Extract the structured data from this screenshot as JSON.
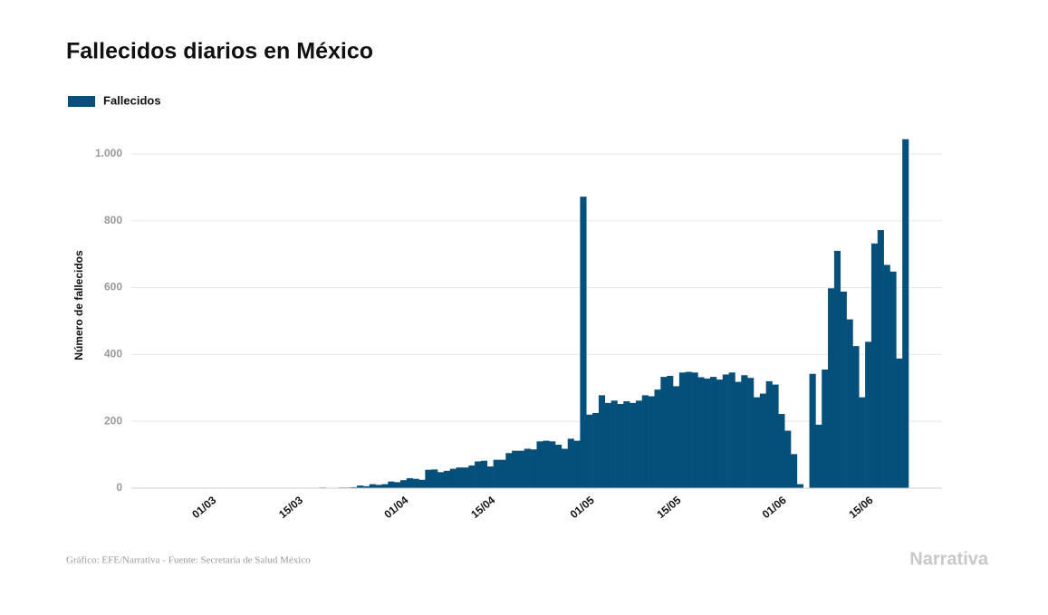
{
  "chart_data": {
    "type": "bar",
    "title": "Fallecidos diarios en México",
    "y_label": "Número de fallecidos",
    "source": "Gráfico: EFE/Narrativa - Fuente: Secretaría de Salud México",
    "brand": "Narrativa",
    "grid": true,
    "legend": "top-left",
    "ylim": [
      0,
      1100
    ],
    "yticks": [
      0,
      200,
      400,
      600,
      800,
      {
        "value": 1000,
        "label": "1.000"
      }
    ],
    "categories": [
      null,
      null,
      null,
      null,
      null,
      null,
      null,
      "01/03",
      null,
      null,
      null,
      null,
      null,
      null,
      null,
      null,
      null,
      null,
      null,
      null,
      null,
      "15/03",
      null,
      null,
      null,
      null,
      null,
      null,
      null,
      null,
      null,
      null,
      null,
      null,
      null,
      null,
      null,
      null,
      "01/04",
      null,
      null,
      null,
      null,
      null,
      null,
      null,
      null,
      null,
      null,
      null,
      null,
      null,
      "15/04",
      null,
      null,
      null,
      null,
      null,
      null,
      null,
      null,
      null,
      null,
      null,
      null,
      null,
      null,
      null,
      "01/05",
      null,
      null,
      null,
      null,
      null,
      null,
      null,
      null,
      null,
      null,
      null,
      null,
      null,
      "15/05",
      null,
      null,
      null,
      null,
      null,
      null,
      null,
      null,
      null,
      null,
      null,
      null,
      null,
      null,
      null,
      null,
      "01/06",
      null,
      null,
      null,
      null,
      null,
      null,
      null,
      null,
      null,
      null,
      null,
      null,
      null,
      "15/06",
      null,
      null,
      null,
      null,
      null,
      null
    ],
    "series": [
      {
        "name": "Fallecidos",
        "color": "#05507a",
        "values": [
          0,
          0,
          0,
          0,
          0,
          0,
          0,
          0,
          0,
          0,
          0,
          0,
          0,
          0,
          0,
          0,
          0,
          0,
          0,
          0,
          0,
          0,
          0,
          0,
          0,
          2,
          1,
          1,
          2,
          2,
          3,
          8,
          6,
          12,
          10,
          12,
          20,
          18,
          24,
          30,
          28,
          25,
          55,
          56,
          48,
          52,
          58,
          62,
          62,
          68,
          80,
          82,
          65,
          85,
          85,
          105,
          112,
          112,
          118,
          116,
          140,
          142,
          140,
          130,
          118,
          148,
          142,
          872,
          220,
          225,
          278,
          255,
          262,
          252,
          260,
          255,
          262,
          278,
          275,
          295,
          333,
          336,
          305,
          346,
          348,
          346,
          332,
          328,
          333,
          325,
          340,
          346,
          318,
          338,
          330,
          272,
          283,
          320,
          310,
          222,
          172,
          102,
          12,
          null,
          342,
          190,
          355,
          598,
          710,
          588,
          505,
          425,
          272,
          438,
          732,
          772,
          668,
          648,
          388,
          1044
        ]
      }
    ]
  }
}
